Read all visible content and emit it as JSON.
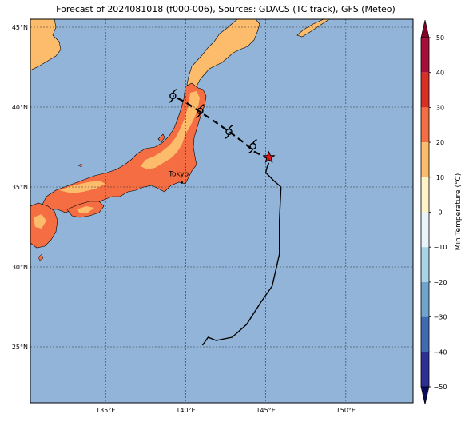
{
  "title": "Forecast of 2024081018 (f000-006), Sources: GDACS (TC track), GFS (Meteo)",
  "map": {
    "lon_range": [
      130.3,
      154.2
    ],
    "lat_range": [
      21.5,
      45.5
    ],
    "lon_ticks": [
      {
        "v": 135,
        "label": "135°E"
      },
      {
        "v": 140,
        "label": "140°E"
      },
      {
        "v": 145,
        "label": "145°E"
      },
      {
        "v": 150,
        "label": "150°E"
      }
    ],
    "lat_ticks": [
      {
        "v": 25,
        "label": "25°N"
      },
      {
        "v": 30,
        "label": "30°N"
      },
      {
        "v": 35,
        "label": "35°N"
      },
      {
        "v": 40,
        "label": "40°N"
      },
      {
        "v": 45,
        "label": "45°N"
      }
    ],
    "ocean_color": "#92b4d8",
    "city": {
      "name": "Tokyo",
      "lon": 139.76,
      "lat": 35.68
    },
    "past_track": [
      [
        141.05,
        25.1
      ],
      [
        141.4,
        25.6
      ],
      [
        141.9,
        25.4
      ],
      [
        142.9,
        25.6
      ],
      [
        143.8,
        26.4
      ],
      [
        144.7,
        27.8
      ],
      [
        145.4,
        28.8
      ],
      [
        145.85,
        30.8
      ],
      [
        145.85,
        32.9
      ],
      [
        145.95,
        35.0
      ],
      [
        145.5,
        35.4
      ],
      [
        145.0,
        35.9
      ],
      [
        145.1,
        36.3
      ],
      [
        145.2,
        36.5
      ]
    ],
    "forecast_track": [
      [
        145.2,
        36.75
      ],
      [
        144.3,
        37.2
      ],
      [
        143.6,
        37.8
      ],
      [
        142.8,
        38.4
      ],
      [
        141.8,
        39.1
      ],
      [
        140.9,
        39.7
      ],
      [
        140.0,
        40.3
      ],
      [
        139.2,
        40.7
      ]
    ],
    "storm_symbols": [
      [
        144.2,
        37.55
      ],
      [
        142.7,
        38.45
      ],
      [
        140.9,
        39.75
      ],
      [
        139.2,
        40.7
      ]
    ],
    "current_position": [
      145.2,
      36.85
    ]
  },
  "colorbar": {
    "label": "Min Temperature (°C)",
    "ticks": [
      50,
      40,
      30,
      20,
      10,
      0,
      -10,
      -20,
      -30,
      -40,
      -50
    ],
    "bands": [
      {
        "from": 40,
        "to": 50,
        "color": "#a50f3a"
      },
      {
        "from": 30,
        "to": 40,
        "color": "#d93025"
      },
      {
        "from": 20,
        "to": 30,
        "color": "#f46d43"
      },
      {
        "from": 10,
        "to": 20,
        "color": "#fdbb6c"
      },
      {
        "from": 0,
        "to": 10,
        "color": "#fff3c8"
      },
      {
        "from": -10,
        "to": 0,
        "color": "#e9f4fa"
      },
      {
        "from": -20,
        "to": -10,
        "color": "#a9d3e6"
      },
      {
        "from": -30,
        "to": -20,
        "color": "#6fa5cc"
      },
      {
        "from": -40,
        "to": -30,
        "color": "#3f6bb0"
      },
      {
        "from": -50,
        "to": -40,
        "color": "#2d2f92"
      }
    ],
    "max_extend_color": "#800026",
    "min_extend_color": "#0b0b5e"
  }
}
